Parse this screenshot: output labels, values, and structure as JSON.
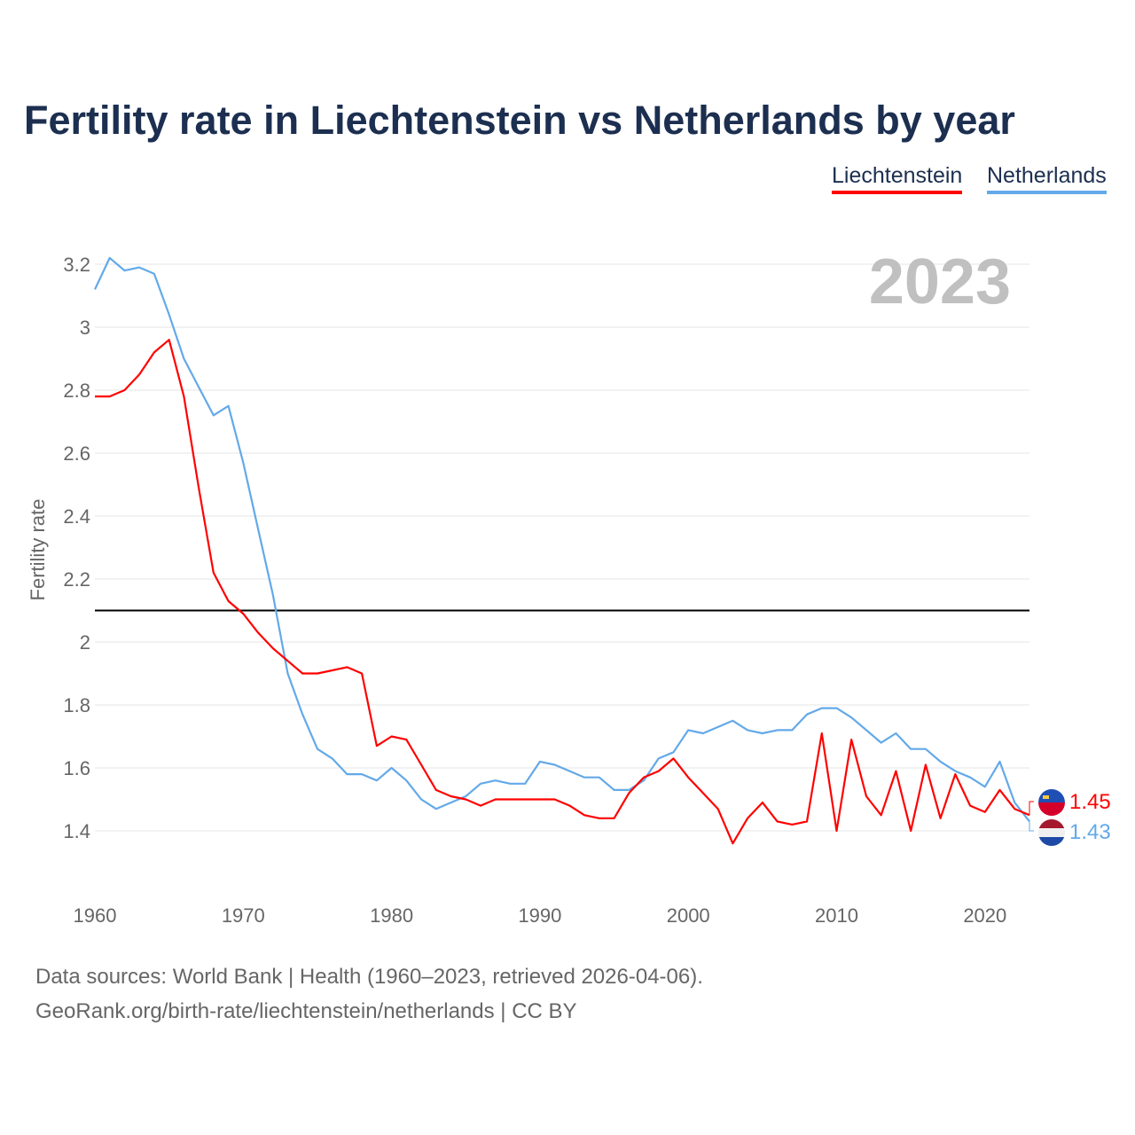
{
  "chart_data": {
    "type": "line",
    "title": "Fertility rate in Liechtenstein vs Netherlands by year",
    "xlabel": "",
    "ylabel": "Fertility rate",
    "xlim": [
      1960,
      2023
    ],
    "ylim": [
      1.25,
      3.28
    ],
    "x_ticks": [
      "1960",
      "1970",
      "1980",
      "1990",
      "2000",
      "2010",
      "2020"
    ],
    "y_ticks": [
      "1.4",
      "1.6",
      "1.8",
      "2",
      "2.2",
      "2.4",
      "2.6",
      "2.8",
      "3",
      "3.2"
    ],
    "grid": true,
    "legend_position": "top-right",
    "year_label": "2023",
    "reference_line": 2.1,
    "x": [
      1960,
      1961,
      1962,
      1963,
      1964,
      1965,
      1966,
      1967,
      1968,
      1969,
      1970,
      1971,
      1972,
      1973,
      1974,
      1975,
      1976,
      1977,
      1978,
      1979,
      1980,
      1981,
      1982,
      1983,
      1984,
      1985,
      1986,
      1987,
      1988,
      1989,
      1990,
      1991,
      1992,
      1993,
      1994,
      1995,
      1996,
      1997,
      1998,
      1999,
      2000,
      2001,
      2002,
      2003,
      2004,
      2005,
      2006,
      2007,
      2008,
      2009,
      2010,
      2011,
      2012,
      2013,
      2014,
      2015,
      2016,
      2017,
      2018,
      2019,
      2020,
      2021,
      2022,
      2023
    ],
    "series": [
      {
        "name": "Liechtenstein",
        "color": "#ff0000",
        "end_label": "1.45",
        "values": [
          2.78,
          2.78,
          2.8,
          2.85,
          2.92,
          2.96,
          2.78,
          2.49,
          2.22,
          2.13,
          2.09,
          2.03,
          1.98,
          1.94,
          1.9,
          1.9,
          1.91,
          1.92,
          1.9,
          1.67,
          1.7,
          1.69,
          1.61,
          1.53,
          1.51,
          1.5,
          1.48,
          1.5,
          1.5,
          1.5,
          1.5,
          1.5,
          1.48,
          1.45,
          1.44,
          1.44,
          1.52,
          1.57,
          1.59,
          1.63,
          1.57,
          1.52,
          1.47,
          1.36,
          1.44,
          1.49,
          1.43,
          1.42,
          1.43,
          1.71,
          1.4,
          1.69,
          1.51,
          1.45,
          1.59,
          1.4,
          1.61,
          1.44,
          1.58,
          1.48,
          1.46,
          1.53,
          1.47,
          1.45
        ]
      },
      {
        "name": "Netherlands",
        "color": "#63a9e9",
        "end_label": "1.43",
        "values": [
          3.12,
          3.22,
          3.18,
          3.19,
          3.17,
          3.04,
          2.9,
          2.81,
          2.72,
          2.75,
          2.57,
          2.36,
          2.15,
          1.9,
          1.77,
          1.66,
          1.63,
          1.58,
          1.58,
          1.56,
          1.6,
          1.56,
          1.5,
          1.47,
          1.49,
          1.51,
          1.55,
          1.56,
          1.55,
          1.55,
          1.62,
          1.61,
          1.59,
          1.57,
          1.57,
          1.53,
          1.53,
          1.56,
          1.63,
          1.65,
          1.72,
          1.71,
          1.73,
          1.75,
          1.72,
          1.71,
          1.72,
          1.72,
          1.77,
          1.79,
          1.79,
          1.76,
          1.72,
          1.68,
          1.71,
          1.66,
          1.66,
          1.62,
          1.59,
          1.57,
          1.54,
          1.62,
          1.49,
          1.43
        ]
      }
    ]
  },
  "footer": {
    "sources": "Data sources: World Bank | Health (1960–2023, retrieved 2026-04-06).",
    "credit": "GeoRank.org/birth-rate/liechtenstein/netherlands | CC BY"
  }
}
